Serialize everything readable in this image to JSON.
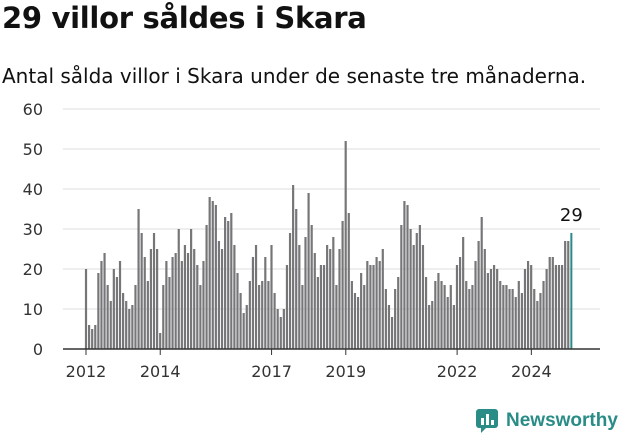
{
  "title": "29 villor såldes i Skara",
  "subtitle": "Antal sålda villor i Skara under de senaste tre månaderna.",
  "brand": {
    "name": "Newsworthy"
  },
  "colors": {
    "bar": "#767578",
    "highlight": "#2a8c86",
    "axis": "#333333",
    "grid": "#dddddd"
  },
  "chart_data": {
    "type": "bar",
    "title": "",
    "xlabel": "",
    "ylabel": "",
    "ylim": [
      0,
      60
    ],
    "yticks": [
      0,
      10,
      20,
      30,
      40,
      50,
      60
    ],
    "xticks": [
      {
        "label": "2012",
        "x": 2012.0
      },
      {
        "label": "2014",
        "x": 2014.0
      },
      {
        "label": "2017",
        "x": 2017.0
      },
      {
        "label": "2019",
        "x": 2019.0
      },
      {
        "label": "2022",
        "x": 2022.0
      },
      {
        "label": "2024",
        "x": 2024.0
      }
    ],
    "grid": true,
    "x_start": 2012.0,
    "x_step": 0.0833,
    "values": [
      20,
      6,
      5,
      6,
      19,
      22,
      24,
      16,
      12,
      20,
      18,
      22,
      14,
      12,
      10,
      11,
      16,
      35,
      29,
      23,
      17,
      25,
      29,
      25,
      4,
      16,
      22,
      18,
      23,
      24,
      30,
      22,
      26,
      24,
      30,
      25,
      21,
      16,
      22,
      31,
      38,
      37,
      36,
      27,
      25,
      33,
      32,
      34,
      26,
      19,
      14,
      9,
      11,
      17,
      23,
      26,
      16,
      17,
      23,
      17,
      26,
      14,
      10,
      8,
      10,
      21,
      29,
      41,
      35,
      26,
      16,
      28,
      39,
      31,
      24,
      18,
      21,
      21,
      26,
      25,
      28,
      16,
      25,
      32,
      52,
      34,
      17,
      14,
      13,
      19,
      16,
      22,
      21,
      21,
      23,
      22,
      25,
      15,
      11,
      8,
      15,
      18,
      31,
      37,
      36,
      30,
      26,
      29,
      31,
      26,
      18,
      11,
      12,
      17,
      19,
      17,
      16,
      13,
      16,
      11,
      21,
      23,
      28,
      17,
      15,
      16,
      22,
      27,
      33,
      25,
      19,
      20,
      21,
      20,
      17,
      16,
      16,
      15,
      15,
      13,
      17,
      14,
      20,
      22,
      21,
      15,
      12,
      14,
      17,
      20,
      23,
      23,
      21,
      21,
      21,
      27,
      27,
      29
    ],
    "highlight_last": true,
    "annotations": [
      {
        "text": "29",
        "target": "last"
      }
    ]
  }
}
